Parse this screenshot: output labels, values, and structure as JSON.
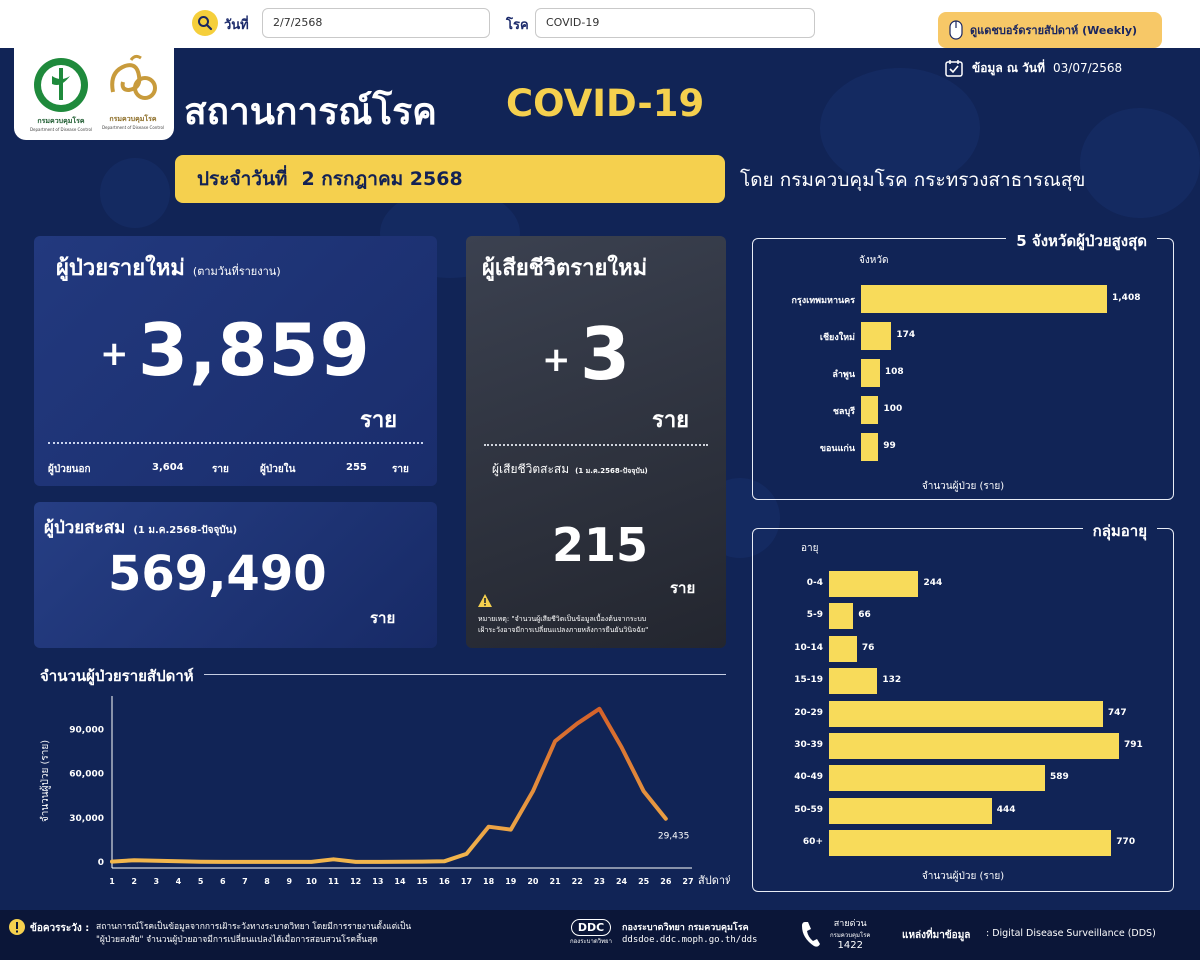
{
  "search": {
    "date_label": "วันที่",
    "date_value": "2/7/2568",
    "disease_label": "โรค",
    "disease_value": "COVID-19",
    "weekly_button": "ดูแดชบอร์ดรายสัปดาห์ (Weekly)"
  },
  "header": {
    "logo1_text": "กรมควบคุมโรค",
    "logo1_sub": "Department of Disease Control",
    "logo2_text": "กรมควบคุมโรค",
    "logo2_sub": "Department of Disease Control",
    "title_th": "สถานการณ์โรค",
    "title_en": "COVID-19",
    "data_as_of_label": "ข้อมูล ณ วันที่",
    "data_as_of_value": "03/07/2568",
    "daily_label": "ประจำวันที่",
    "daily_date": "2 กรกฎาคม 2568",
    "by_text": "โดย กรมควบคุมโรค  กระทรวงสาธารณสุข"
  },
  "new_cases": {
    "title": "ผู้ป่วยรายใหม่",
    "subtitle": "(ตามวันที่รายงาน)",
    "plus": "+",
    "value": "3,859",
    "unit": "ราย",
    "outpatient_label": "ผู้ป่วยนอก",
    "outpatient_value": "3,604",
    "outpatient_unit": "ราย",
    "inpatient_label": "ผู้ป่วยใน",
    "inpatient_value": "255",
    "inpatient_unit": "ราย"
  },
  "cumulative": {
    "title": "ผู้ป่วยสะสม",
    "subtitle": "(1 ม.ค.2568-ปัจจุบัน)",
    "value": "569,490",
    "unit": "ราย"
  },
  "deaths": {
    "title": "ผู้เสียชีวิตรายใหม่",
    "plus": "+",
    "value": "3",
    "unit": "ราย",
    "cum_label": "ผู้เสียชีวิตสะสม",
    "cum_sub": "(1 ม.ค.2568-ปัจจุบัน)",
    "cum_value": "215",
    "cum_unit": "ราย",
    "note_label": "หมายเหตุ:",
    "note_line1": "\"จำนวนผู้เสียชีวิตเป็นข้อมูลเบื้องต้นจากระบบ",
    "note_line2": "เฝ้าระวังอาจมีการเปลี่ยนแปลงภายหลังการยืนยันวินิจฉัย\""
  },
  "weekly_chart_title": "จำนวนผู้ป่วยรายสัปดาห์",
  "top5_title": "5  จังหวัดผู้ป่วยสูงสุด",
  "age_title": "กลุ่มอายุ",
  "chart_data": [
    {
      "type": "line",
      "title": "จำนวนผู้ป่วยรายสัปดาห์",
      "xlabel": "สัปดาห์",
      "ylabel": "จำนวนผู้ป่วย (ราย)",
      "x": [
        1,
        2,
        3,
        4,
        5,
        6,
        7,
        8,
        9,
        10,
        11,
        12,
        13,
        14,
        15,
        16,
        17,
        18,
        19,
        20,
        21,
        22,
        23,
        24,
        25,
        26
      ],
      "x_ticks": [
        "1",
        "2",
        "3",
        "4",
        "5",
        "6",
        "7",
        "8",
        "9",
        "10",
        "11",
        "12",
        "13",
        "14",
        "15",
        "16",
        "17",
        "18",
        "19",
        "20",
        "21",
        "22",
        "23",
        "24",
        "25",
        "26",
        "27"
      ],
      "y_ticks": [
        "0",
        "30,000",
        "60,000",
        "90,000"
      ],
      "values": [
        300,
        1200,
        800,
        500,
        200,
        100,
        100,
        100,
        100,
        100,
        1800,
        100,
        100,
        200,
        300,
        500,
        5500,
        24000,
        22000,
        48000,
        82000,
        94000,
        104000,
        78000,
        48000,
        29435
      ],
      "ylim": [
        0,
        110000
      ],
      "xlim": [
        1,
        27
      ],
      "annotation": "29,435"
    },
    {
      "type": "bar",
      "orientation": "horizontal",
      "title": "5  จังหวัดผู้ป่วยสูงสุด",
      "ylabel": "จังหวัด",
      "xlabel": "จำนวนผู้ป่วย (ราย)",
      "categories": [
        "กรุงเทพมหานคร",
        "เชียงใหม่",
        "ลำพูน",
        "ชลบุรี",
        "ขอนแก่น"
      ],
      "values": [
        1408,
        174,
        108,
        100,
        99
      ],
      "value_labels": [
        "1,408",
        "174",
        "108",
        "100",
        "99"
      ],
      "xlim": [
        0,
        1408
      ]
    },
    {
      "type": "bar",
      "orientation": "horizontal",
      "title": "กลุ่มอายุ",
      "ylabel": "อายุ",
      "xlabel": "จำนวนผู้ป่วย (ราย)",
      "categories": [
        "0-4",
        "5-9",
        "10-14",
        "15-19",
        "20-29",
        "30-39",
        "40-49",
        "50-59",
        "60+"
      ],
      "values": [
        244,
        66,
        76,
        132,
        747,
        791,
        589,
        444,
        770
      ],
      "value_labels": [
        "244",
        "66",
        "76",
        "132",
        "747",
        "791",
        "589",
        "444",
        "770"
      ],
      "xlim": [
        0,
        791
      ]
    }
  ],
  "footer": {
    "warning_label": "ข้อควรระวัง :",
    "warning_line1": "สถานการณ์โรคเป็นข้อมูลจากการเฝ้าระวังทางระบาดวิทยา โดยมีการรายงานตั้งแต่เป็น",
    "warning_line2": "\"ผู้ป่วยสงสัย\" จำนวนผู้ป่วยอาจมีการเปลี่ยนแปลงได้เมื่อการสอบสวนโรคสิ้นสุด",
    "ddc_logo": "DDC",
    "ddc_logo_sub": "กองระบาดวิทยา",
    "division_name": "กองระบาดวิทยา กรมควบคุมโรค",
    "website": "ddsdoe.ddc.moph.go.th/dds",
    "hotline_label": "สายด่วน",
    "hotline_sub": "กรมควบคุมโรค",
    "hotline_number": "1422",
    "source_label": "แหล่งที่มาข้อมูล",
    "source_value": ": Digital Disease Surveillance (DDS)"
  },
  "colors": {
    "navy": "#112456",
    "yellow": "#f5d04e",
    "bar_yellow": "#f8db5a",
    "line_dark": "#d4612a",
    "line_light": "#f2b64d"
  }
}
